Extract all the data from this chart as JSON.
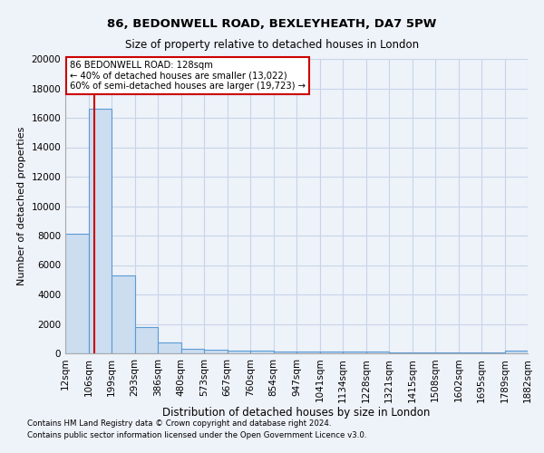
{
  "title": "86, BEDONWELL ROAD, BEXLEYHEATH, DA7 5PW",
  "subtitle": "Size of property relative to detached houses in London",
  "xlabel": "Distribution of detached houses by size in London",
  "ylabel": "Number of detached properties",
  "footnote1": "Contains HM Land Registry data © Crown copyright and database right 2024.",
  "footnote2": "Contains public sector information licensed under the Open Government Licence v3.0.",
  "annotation_line1": "86 BEDONWELL ROAD: 128sqm",
  "annotation_line2": "← 40% of detached houses are smaller (13,022)",
  "annotation_line3": "60% of semi-detached houses are larger (19,723) →",
  "property_size": 128,
  "bin_edges": [
    12,
    106,
    199,
    293,
    386,
    480,
    573,
    667,
    760,
    854,
    947,
    1041,
    1134,
    1228,
    1321,
    1415,
    1508,
    1602,
    1695,
    1789,
    1882
  ],
  "bin_counts": [
    8100,
    16600,
    5300,
    1800,
    750,
    330,
    270,
    210,
    175,
    130,
    120,
    110,
    100,
    95,
    90,
    85,
    80,
    75,
    70,
    180
  ],
  "bar_facecolor": "#ccddf0",
  "bar_edgecolor": "#5b9bd5",
  "redline_color": "#cc0000",
  "annotation_edgecolor": "#cc0000",
  "annotation_facecolor": "#ffffff",
  "grid_color": "#c8d4e8",
  "background_color": "#eef2f9",
  "ylim": [
    0,
    20000
  ],
  "yticks": [
    0,
    2000,
    4000,
    6000,
    8000,
    10000,
    12000,
    14000,
    16000,
    18000,
    20000
  ]
}
